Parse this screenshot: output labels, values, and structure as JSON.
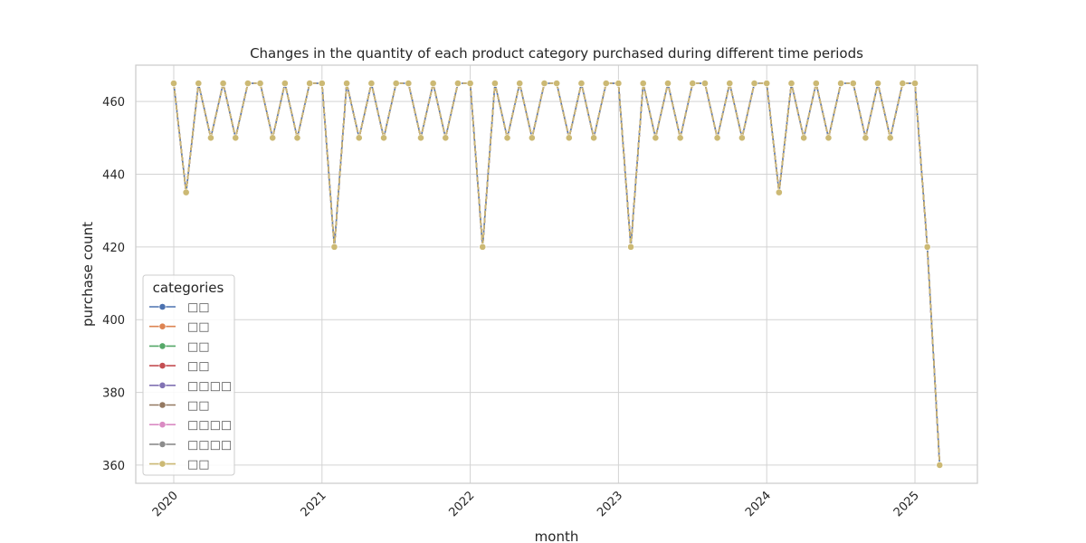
{
  "chart_data": {
    "type": "line",
    "title": "Changes in the quantity of each product category purchased during different time periods",
    "xlabel": "month",
    "ylabel": "purchase count",
    "x_tick_labels": [
      "2020",
      "2021",
      "2022",
      "2023",
      "2024",
      "2025"
    ],
    "y_ticks": [
      360,
      380,
      400,
      420,
      440,
      460
    ],
    "ylim": [
      355,
      470
    ],
    "grid": true,
    "legend": {
      "title": "categories",
      "placement": "lower-left",
      "entries": [
        "□□",
        "□□",
        "□□",
        "□□",
        "□□□□",
        "□□",
        "□□□□",
        "□□□□",
        "□□"
      ]
    },
    "x": [
      "2020-01",
      "2020-02",
      "2020-03",
      "2020-04",
      "2020-05",
      "2020-06",
      "2020-07",
      "2020-08",
      "2020-09",
      "2020-10",
      "2020-11",
      "2020-12",
      "2021-01",
      "2021-02",
      "2021-03",
      "2021-04",
      "2021-05",
      "2021-06",
      "2021-07",
      "2021-08",
      "2021-09",
      "2021-10",
      "2021-11",
      "2021-12",
      "2022-01",
      "2022-02",
      "2022-03",
      "2022-04",
      "2022-05",
      "2022-06",
      "2022-07",
      "2022-08",
      "2022-09",
      "2022-10",
      "2022-11",
      "2022-12",
      "2023-01",
      "2023-02",
      "2023-03",
      "2023-04",
      "2023-05",
      "2023-06",
      "2023-07",
      "2023-08",
      "2023-09",
      "2023-10",
      "2023-11",
      "2023-12",
      "2024-01",
      "2024-02",
      "2024-03",
      "2024-04",
      "2024-05",
      "2024-06",
      "2024-07",
      "2024-08",
      "2024-09",
      "2024-10",
      "2024-11",
      "2024-12",
      "2025-01",
      "2025-02",
      "2025-03"
    ],
    "series": [
      {
        "name": "□□",
        "color": "#4c72b0",
        "values": [
          465,
          435,
          465,
          450,
          465,
          450,
          465,
          465,
          450,
          465,
          450,
          465,
          465,
          420,
          465,
          450,
          465,
          450,
          465,
          465,
          450,
          465,
          450,
          465,
          465,
          420,
          465,
          450,
          465,
          450,
          465,
          465,
          450,
          465,
          450,
          465,
          465,
          420,
          465,
          450,
          465,
          450,
          465,
          465,
          450,
          465,
          450,
          465,
          465,
          435,
          465,
          450,
          465,
          450,
          465,
          465,
          450,
          465,
          450,
          465,
          465,
          420,
          360
        ]
      },
      {
        "name": "□□",
        "color": "#dd8452",
        "values": [
          465,
          435,
          465,
          450,
          465,
          450,
          465,
          465,
          450,
          465,
          450,
          465,
          465,
          420,
          465,
          450,
          465,
          450,
          465,
          465,
          450,
          465,
          450,
          465,
          465,
          420,
          465,
          450,
          465,
          450,
          465,
          465,
          450,
          465,
          450,
          465,
          465,
          420,
          465,
          450,
          465,
          450,
          465,
          465,
          450,
          465,
          450,
          465,
          465,
          435,
          465,
          450,
          465,
          450,
          465,
          465,
          450,
          465,
          450,
          465,
          465,
          420,
          360
        ]
      },
      {
        "name": "□□",
        "color": "#55a868",
        "values": [
          465,
          435,
          465,
          450,
          465,
          450,
          465,
          465,
          450,
          465,
          450,
          465,
          465,
          420,
          465,
          450,
          465,
          450,
          465,
          465,
          450,
          465,
          450,
          465,
          465,
          420,
          465,
          450,
          465,
          450,
          465,
          465,
          450,
          465,
          450,
          465,
          465,
          420,
          465,
          450,
          465,
          450,
          465,
          465,
          450,
          465,
          450,
          465,
          465,
          435,
          465,
          450,
          465,
          450,
          465,
          465,
          450,
          465,
          450,
          465,
          465,
          420,
          360
        ]
      },
      {
        "name": "□□",
        "color": "#c44e52",
        "values": [
          465,
          435,
          465,
          450,
          465,
          450,
          465,
          465,
          450,
          465,
          450,
          465,
          465,
          420,
          465,
          450,
          465,
          450,
          465,
          465,
          450,
          465,
          450,
          465,
          465,
          420,
          465,
          450,
          465,
          450,
          465,
          465,
          450,
          465,
          450,
          465,
          465,
          420,
          465,
          450,
          465,
          450,
          465,
          465,
          450,
          465,
          450,
          465,
          465,
          435,
          465,
          450,
          465,
          450,
          465,
          465,
          450,
          465,
          450,
          465,
          465,
          420,
          360
        ]
      },
      {
        "name": "□□□□",
        "color": "#8172b3",
        "values": [
          465,
          435,
          465,
          450,
          465,
          450,
          465,
          465,
          450,
          465,
          450,
          465,
          465,
          420,
          465,
          450,
          465,
          450,
          465,
          465,
          450,
          465,
          450,
          465,
          465,
          420,
          465,
          450,
          465,
          450,
          465,
          465,
          450,
          465,
          450,
          465,
          465,
          420,
          465,
          450,
          465,
          450,
          465,
          465,
          450,
          465,
          450,
          465,
          465,
          435,
          465,
          450,
          465,
          450,
          465,
          465,
          450,
          465,
          450,
          465,
          465,
          420,
          360
        ]
      },
      {
        "name": "□□",
        "color": "#937860",
        "values": [
          465,
          435,
          465,
          450,
          465,
          450,
          465,
          465,
          450,
          465,
          450,
          465,
          465,
          420,
          465,
          450,
          465,
          450,
          465,
          465,
          450,
          465,
          450,
          465,
          465,
          420,
          465,
          450,
          465,
          450,
          465,
          465,
          450,
          465,
          450,
          465,
          465,
          420,
          465,
          450,
          465,
          450,
          465,
          465,
          450,
          465,
          450,
          465,
          465,
          435,
          465,
          450,
          465,
          450,
          465,
          465,
          450,
          465,
          450,
          465,
          465,
          420,
          360
        ]
      },
      {
        "name": "□□□□",
        "color": "#da8bc3",
        "values": [
          465,
          435,
          465,
          450,
          465,
          450,
          465,
          465,
          450,
          465,
          450,
          465,
          465,
          420,
          465,
          450,
          465,
          450,
          465,
          465,
          450,
          465,
          450,
          465,
          465,
          420,
          465,
          450,
          465,
          450,
          465,
          465,
          450,
          465,
          450,
          465,
          465,
          420,
          465,
          450,
          465,
          450,
          465,
          465,
          450,
          465,
          450,
          465,
          465,
          435,
          465,
          450,
          465,
          450,
          465,
          465,
          450,
          465,
          450,
          465,
          465,
          420,
          360
        ]
      },
      {
        "name": "□□□□",
        "color": "#8c8c8c",
        "values": [
          465,
          435,
          465,
          450,
          465,
          450,
          465,
          465,
          450,
          465,
          450,
          465,
          465,
          420,
          465,
          450,
          465,
          450,
          465,
          465,
          450,
          465,
          450,
          465,
          465,
          420,
          465,
          450,
          465,
          450,
          465,
          465,
          450,
          465,
          450,
          465,
          465,
          420,
          465,
          450,
          465,
          450,
          465,
          465,
          450,
          465,
          450,
          465,
          465,
          435,
          465,
          450,
          465,
          450,
          465,
          465,
          450,
          465,
          450,
          465,
          465,
          420,
          360
        ]
      },
      {
        "name": "□□",
        "color": "#ccb974",
        "values": [
          465,
          435,
          465,
          450,
          465,
          450,
          465,
          465,
          450,
          465,
          450,
          465,
          465,
          420,
          465,
          450,
          465,
          450,
          465,
          465,
          450,
          465,
          450,
          465,
          465,
          420,
          465,
          450,
          465,
          450,
          465,
          465,
          450,
          465,
          450,
          465,
          465,
          420,
          465,
          450,
          465,
          450,
          465,
          465,
          450,
          465,
          450,
          465,
          465,
          435,
          465,
          450,
          465,
          450,
          465,
          465,
          450,
          465,
          450,
          465,
          465,
          420,
          360
        ]
      }
    ]
  }
}
